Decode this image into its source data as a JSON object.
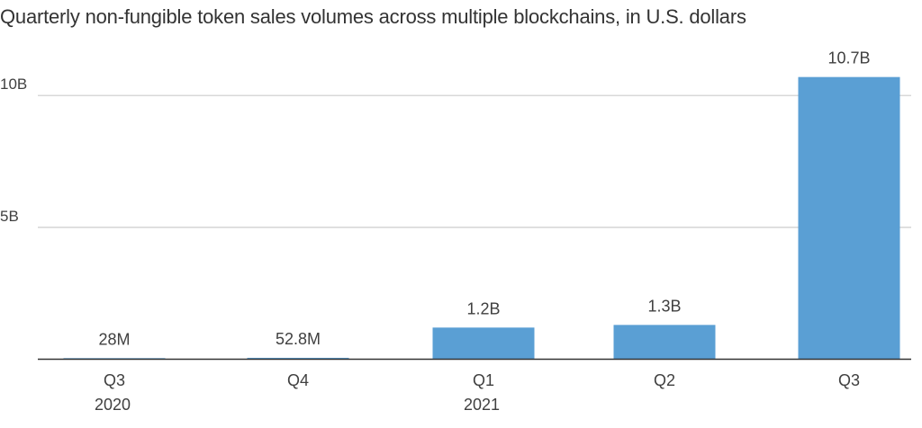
{
  "chart_data": {
    "type": "bar",
    "title": "Quarterly non-fungible token sales volumes across multiple blockchains, in U.S. dollars",
    "xlabel": "",
    "ylabel": "",
    "categories": [
      "Q3",
      "Q4",
      "Q1",
      "Q2",
      "Q3"
    ],
    "category_years": [
      "2020",
      "",
      "2021",
      "",
      ""
    ],
    "values": [
      0.028,
      0.0528,
      1.2,
      1.3,
      10.7
    ],
    "value_labels": [
      "28M",
      "52.8M",
      "1.2B",
      "1.3B",
      "10.7B"
    ],
    "value_unit": "billion U.S. dollars",
    "ylim": [
      0,
      11.2
    ],
    "yticks": [
      {
        "value": 5,
        "label": "5B"
      },
      {
        "value": 10,
        "label": "10B"
      }
    ],
    "grid": true,
    "legend": "none",
    "bar_color": "#5a9fd4",
    "grid_color": "#cccccc",
    "axis_color": "#333333"
  }
}
